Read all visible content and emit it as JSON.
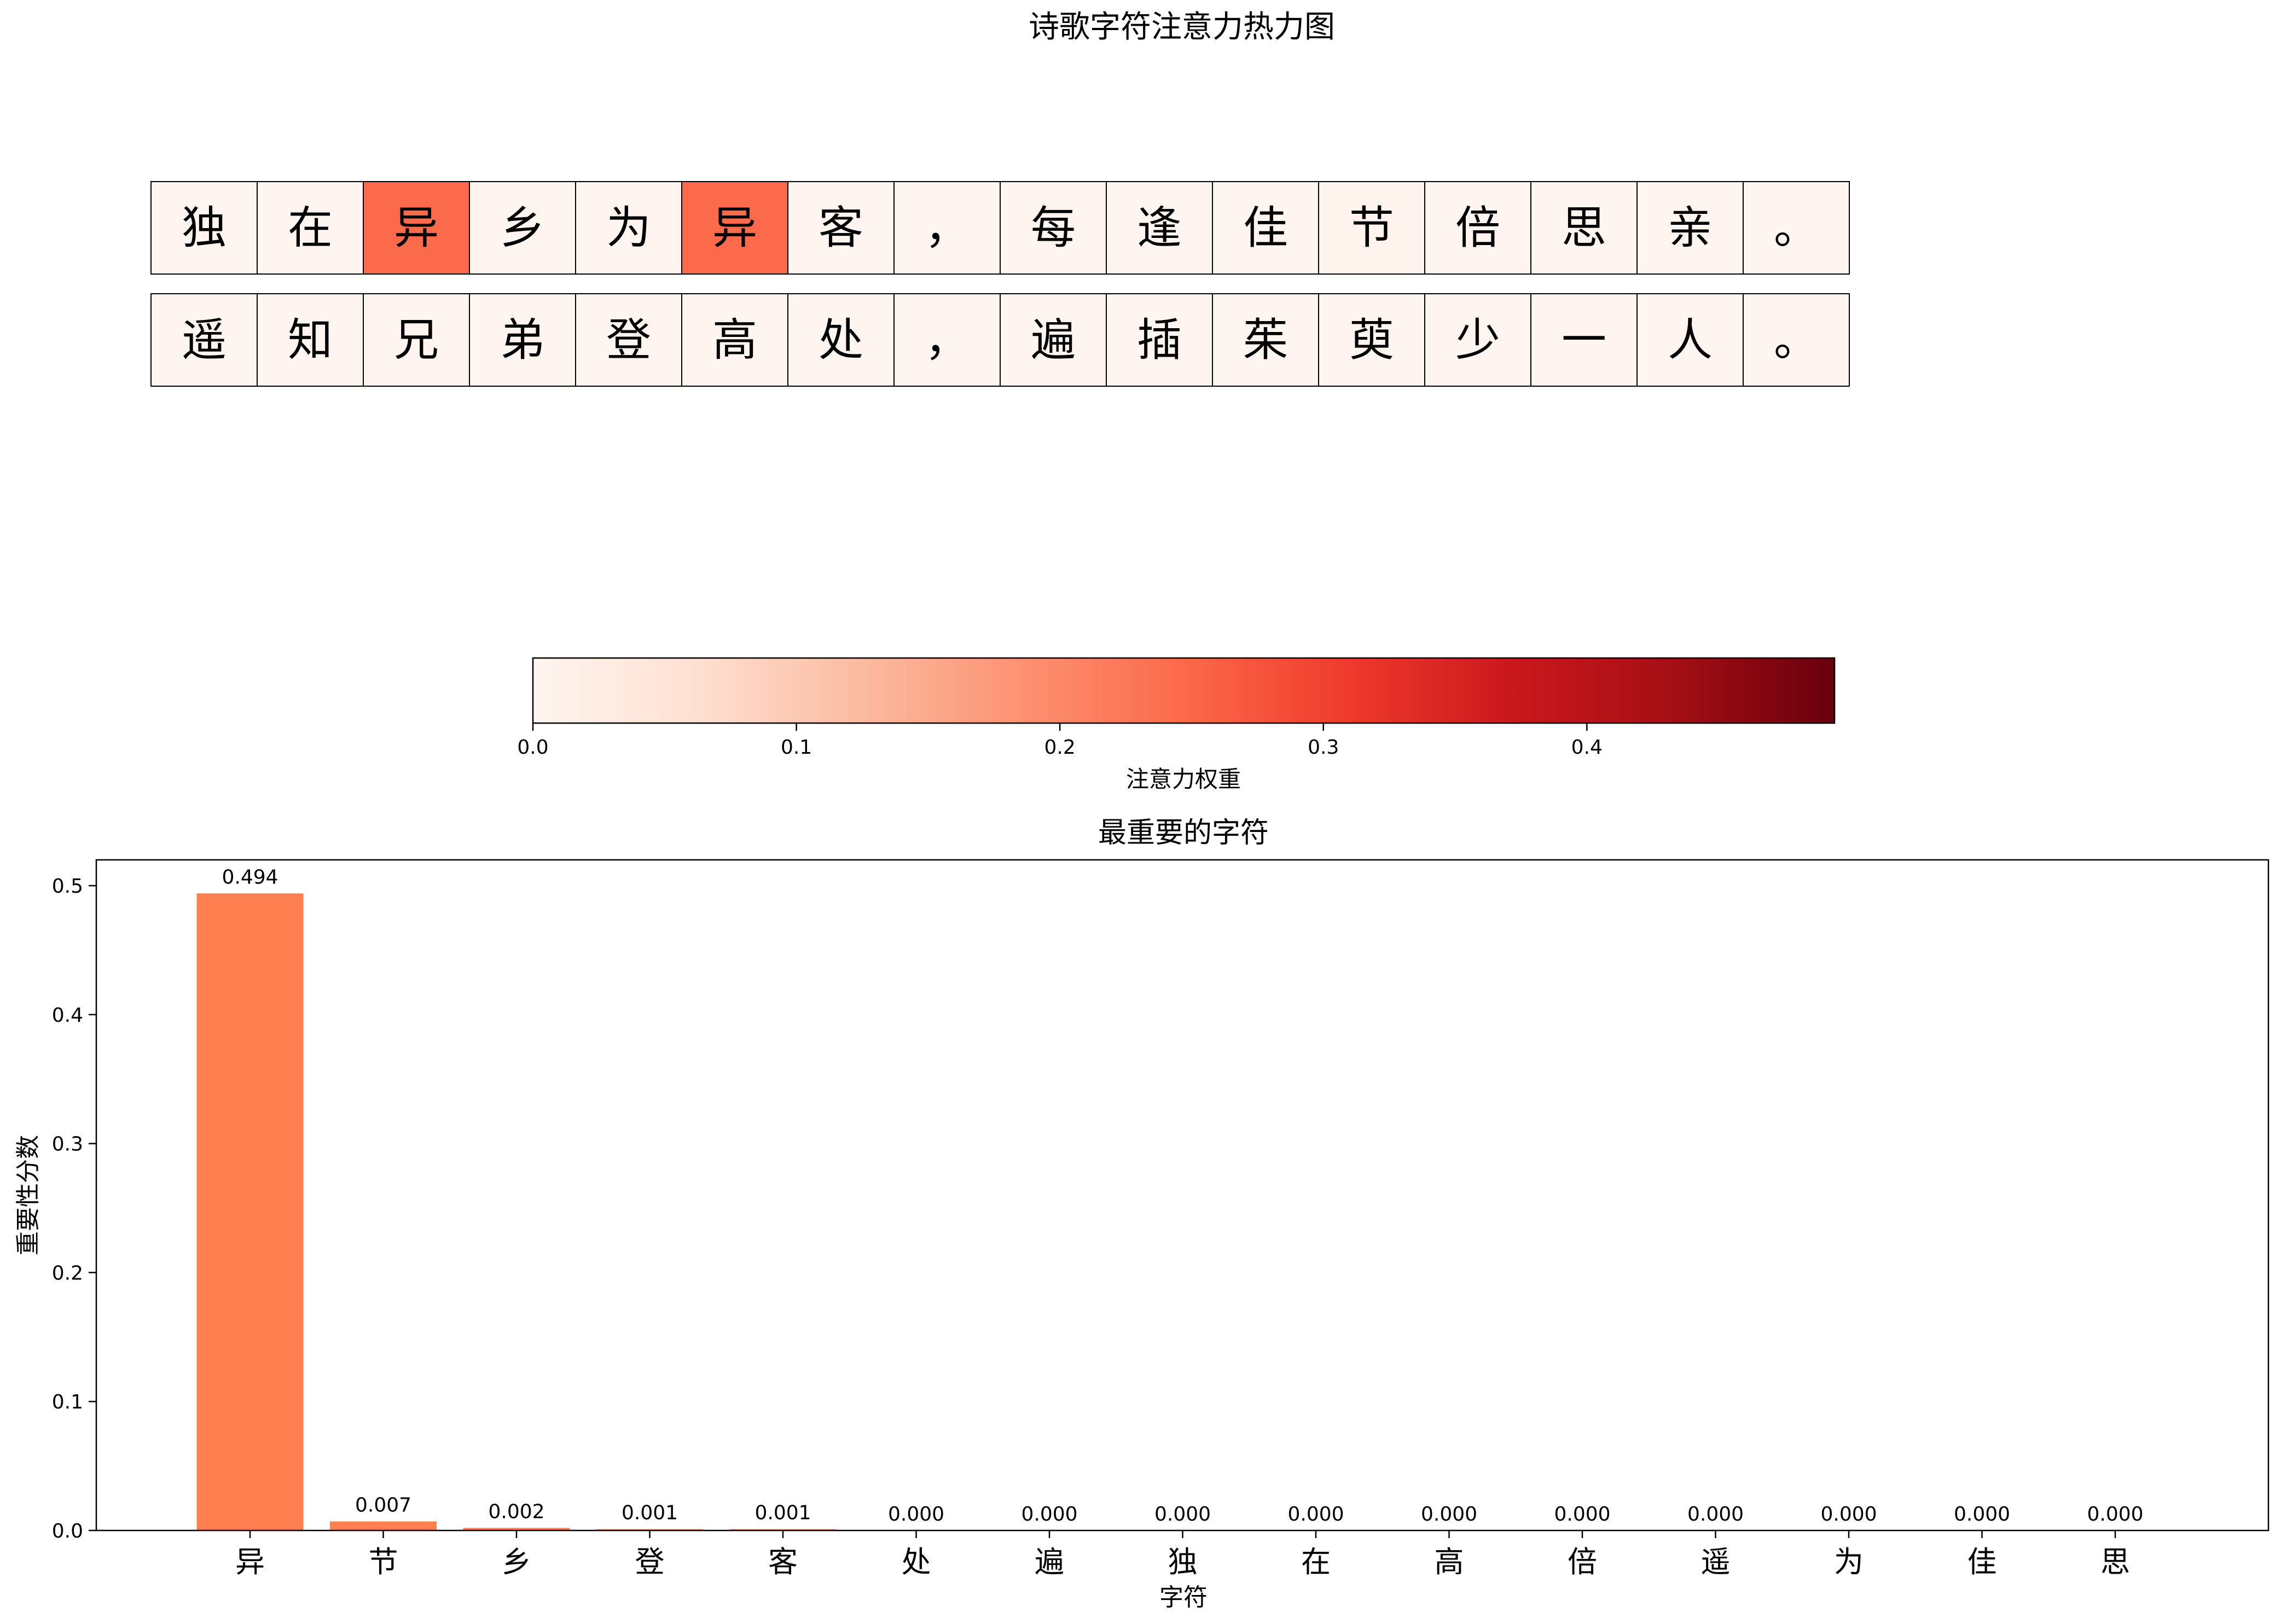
{
  "chart_data": [
    {
      "type": "heatmap",
      "title": "诗歌字符注意力热力图",
      "rows": [
        {
          "chars": [
            "独",
            "在",
            "异",
            "乡",
            "为",
            "异",
            "客",
            "，",
            "每",
            "逢",
            "佳",
            "节",
            "倍",
            "思",
            "亲",
            "。"
          ],
          "values": [
            0.0,
            0.0,
            0.247,
            0.001,
            0.0,
            0.247,
            0.0005,
            0.0,
            0.0,
            0.0,
            0.0,
            0.007,
            0.0,
            0.0,
            0.0,
            0.0
          ]
        },
        {
          "chars": [
            "遥",
            "知",
            "兄",
            "弟",
            "登",
            "高",
            "处",
            "，",
            "遍",
            "插",
            "茱",
            "萸",
            "少",
            "一",
            "人",
            "。"
          ],
          "values": [
            0.0,
            0.0,
            0.0,
            0.0,
            0.001,
            0.0,
            0.0,
            0.0,
            0.0,
            0.0,
            0.0,
            0.0,
            0.0,
            0.0,
            0.0,
            0.0
          ]
        }
      ],
      "colorbar": {
        "label": "注意力权重",
        "colormap": "Reds",
        "range": [
          0,
          0.494
        ],
        "ticks": [
          0.0,
          0.1,
          0.2,
          0.3,
          0.4
        ],
        "tick_labels": [
          "0.0",
          "0.1",
          "0.2",
          "0.3",
          "0.4"
        ]
      }
    },
    {
      "type": "bar",
      "title": "最重要的字符",
      "xlabel": "字符",
      "ylabel": "重要性分数",
      "categories": [
        "异",
        "节",
        "乡",
        "登",
        "客",
        "处",
        "遍",
        "独",
        "在",
        "高",
        "倍",
        "遥",
        "为",
        "佳",
        "思"
      ],
      "values": [
        0.494,
        0.007,
        0.002,
        0.001,
        0.001,
        0.0,
        0.0,
        0.0,
        0.0,
        0.0,
        0.0,
        0.0,
        0.0,
        0.0,
        0.0
      ],
      "value_labels": [
        "0.494",
        "0.007",
        "0.002",
        "0.001",
        "0.001",
        "0.000",
        "0.000",
        "0.000",
        "0.000",
        "0.000",
        "0.000",
        "0.000",
        "0.000",
        "0.000",
        "0.000"
      ],
      "ylim": [
        0,
        0.52
      ],
      "yticks": [
        0.0,
        0.1,
        0.2,
        0.3,
        0.4,
        0.5
      ],
      "ytick_labels": [
        "0.0",
        "0.1",
        "0.2",
        "0.3",
        "0.4",
        "0.5"
      ],
      "bar_color": "#ff7f50",
      "grid": false,
      "legend": "none"
    }
  ]
}
